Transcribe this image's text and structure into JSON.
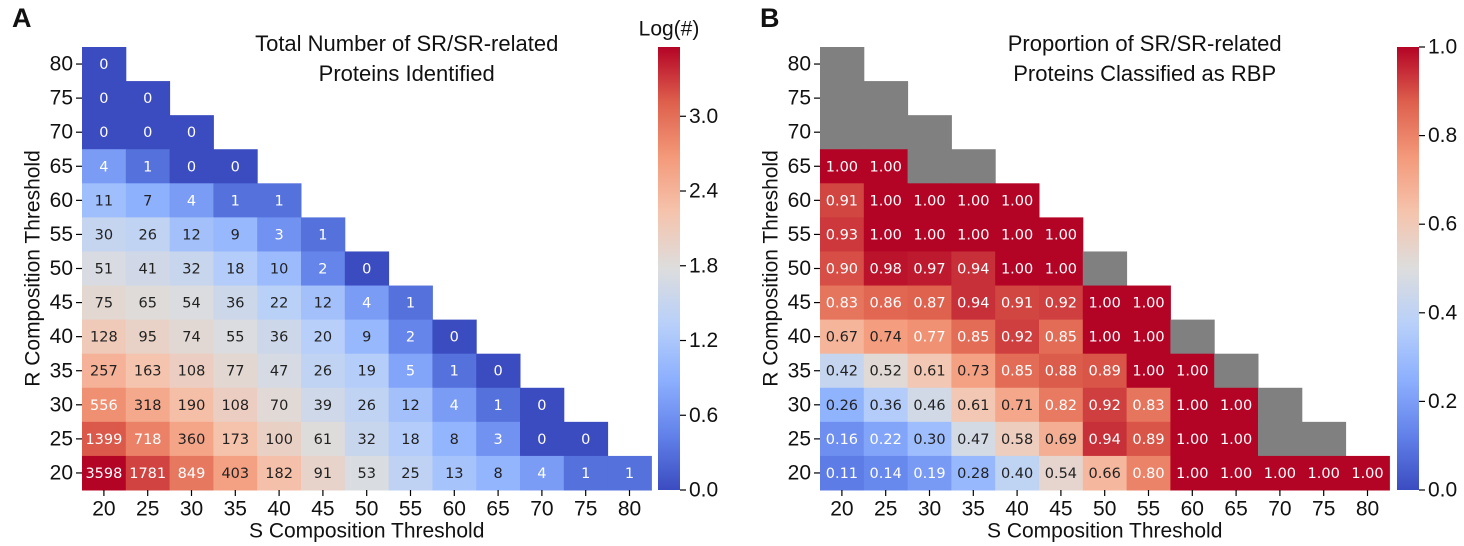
{
  "chart_data": [
    {
      "type": "heatmap",
      "panel": "A",
      "title": [
        "Total Number of SR/SR-related",
        "Proteins Identified"
      ],
      "x_label": "S Composition Threshold",
      "y_label": "R Composition Threshold",
      "x_categories": [
        20,
        25,
        30,
        35,
        40,
        45,
        50,
        55,
        60,
        65,
        70,
        75,
        80
      ],
      "y_categories": [
        80,
        75,
        70,
        65,
        60,
        55,
        50,
        45,
        40,
        35,
        30,
        25,
        20
      ],
      "values": [
        [
          0
        ],
        [
          0,
          0
        ],
        [
          0,
          0,
          0
        ],
        [
          4,
          1,
          0,
          0
        ],
        [
          11,
          7,
          4,
          1,
          1
        ],
        [
          30,
          26,
          12,
          9,
          3,
          1
        ],
        [
          51,
          41,
          32,
          18,
          10,
          2,
          0
        ],
        [
          75,
          65,
          54,
          36,
          22,
          12,
          4,
          1
        ],
        [
          128,
          95,
          74,
          55,
          36,
          20,
          9,
          2,
          0
        ],
        [
          257,
          163,
          108,
          77,
          47,
          26,
          19,
          5,
          1,
          0
        ],
        [
          556,
          318,
          190,
          108,
          70,
          39,
          26,
          12,
          4,
          1,
          0
        ],
        [
          1399,
          718,
          360,
          173,
          100,
          61,
          32,
          18,
          8,
          3,
          0,
          0
        ],
        [
          3598,
          1781,
          849,
          403,
          182,
          91,
          53,
          25,
          13,
          8,
          4,
          1,
          1
        ]
      ],
      "log_color": true,
      "colorbar_label": "Log(#)",
      "clim": [
        0,
        3.556
      ],
      "cticks": [
        {
          "value": 0,
          "label": "0.0"
        },
        0.6,
        1.2,
        1.8,
        2.4,
        {
          "value": 3,
          "label": "3.0"
        }
      ]
    },
    {
      "type": "heatmap",
      "panel": "B",
      "title": [
        "Proportion of SR/SR-related",
        "Proteins Classified as RBP"
      ],
      "x_label": "S Composition Threshold",
      "y_label": "R Composition Threshold",
      "x_categories": [
        20,
        25,
        30,
        35,
        40,
        45,
        50,
        55,
        60,
        65,
        70,
        75,
        80
      ],
      "y_categories": [
        80,
        75,
        70,
        65,
        60,
        55,
        50,
        45,
        40,
        35,
        30,
        25,
        20
      ],
      "values": [
        [
          null
        ],
        [
          null,
          null
        ],
        [
          null,
          null,
          null
        ],
        [
          1,
          1,
          null,
          null
        ],
        [
          0.91,
          1,
          1,
          1,
          1
        ],
        [
          0.93,
          1,
          1,
          1,
          1,
          1
        ],
        [
          0.9,
          0.98,
          0.97,
          0.94,
          1,
          1,
          null
        ],
        [
          0.83,
          0.86,
          0.87,
          0.94,
          0.91,
          0.92,
          1,
          1
        ],
        [
          0.67,
          0.74,
          0.77,
          0.85,
          0.92,
          0.85,
          1,
          1,
          null
        ],
        [
          0.42,
          0.52,
          0.61,
          0.73,
          0.85,
          0.88,
          0.89,
          1,
          1,
          null
        ],
        [
          0.26,
          0.36,
          0.46,
          0.61,
          0.71,
          0.82,
          0.92,
          0.83,
          1,
          1,
          null
        ],
        [
          0.16,
          0.22,
          0.3,
          0.47,
          0.58,
          0.69,
          0.94,
          0.89,
          1,
          1,
          null,
          null
        ],
        [
          0.11,
          0.14,
          0.19,
          0.28,
          0.4,
          0.54,
          0.66,
          0.8,
          1,
          1,
          1,
          1,
          1
        ]
      ],
      "value_labels": [
        [
          null
        ],
        [
          null,
          null
        ],
        [
          null,
          null,
          null
        ],
        [
          "1.00",
          "1.00",
          null,
          null
        ],
        [
          "0.91",
          "1.00",
          "1.00",
          "1.00",
          "1.00"
        ],
        [
          "0.93",
          "1.00",
          "1.00",
          "1.00",
          "1.00",
          "1.00"
        ],
        [
          "0.90",
          "0.98",
          "0.97",
          "0.94",
          "1.00",
          "1.00",
          null
        ],
        [
          "0.83",
          "0.86",
          "0.87",
          "0.94",
          "0.91",
          "0.92",
          "1.00",
          "1.00"
        ],
        [
          "0.67",
          "0.74",
          "0.77",
          "0.85",
          "0.92",
          "0.85",
          "1.00",
          "1.00",
          null
        ],
        [
          "0.42",
          "0.52",
          "0.61",
          "0.73",
          "0.85",
          "0.88",
          "0.89",
          "1.00",
          "1.00",
          null
        ],
        [
          "0.26",
          "0.36",
          "0.46",
          "0.61",
          "0.71",
          "0.82",
          "0.92",
          "0.83",
          "1.00",
          "1.00",
          null
        ],
        [
          "0.16",
          "0.22",
          "0.30",
          "0.47",
          "0.58",
          "0.69",
          "0.94",
          "0.89",
          "1.00",
          "1.00",
          null,
          null
        ],
        [
          "0.11",
          "0.14",
          "0.19",
          "0.28",
          "0.40",
          "0.54",
          "0.66",
          "0.80",
          "1.00",
          "1.00",
          "1.00",
          "1.00",
          "1.00"
        ]
      ],
      "missing_color": "#808080",
      "clim": [
        0,
        1
      ],
      "cticks": [
        {
          "value": 0,
          "label": "0.0"
        },
        0.2,
        0.4,
        0.6,
        0.8,
        {
          "value": 1,
          "label": "1.0"
        }
      ]
    }
  ]
}
